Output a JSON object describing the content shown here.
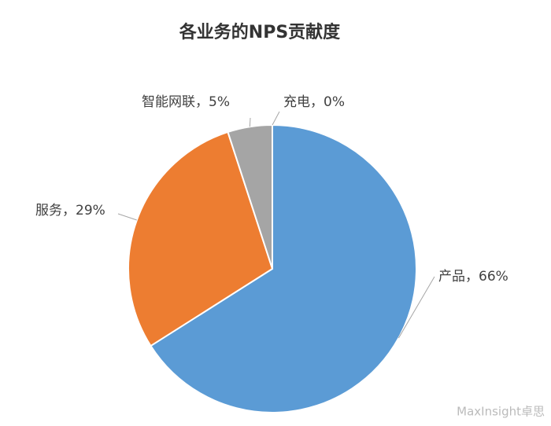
{
  "chart_data": {
    "type": "pie",
    "title": "各业务的NPS贡献度",
    "labels": [
      "产品，66%",
      "服务，29%",
      "智能网联，5%",
      "充电，0%"
    ],
    "values": [
      66,
      29,
      5,
      0
    ],
    "colors": [
      "#5b9bd5",
      "#ed7d31",
      "#a5a5a5",
      "#ffc000"
    ],
    "watermark": "MaxInsight卓思"
  }
}
